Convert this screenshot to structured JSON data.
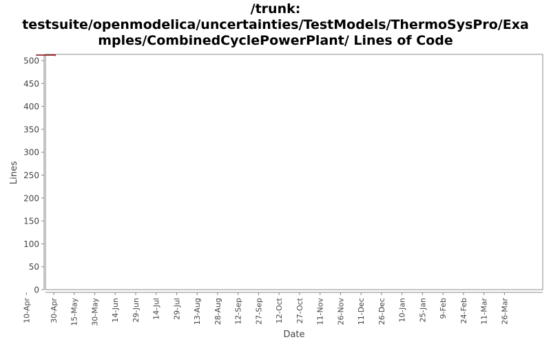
{
  "chart_data": {
    "type": "line",
    "title_lines": [
      "/trunk:",
      "testsuite/openmodelica/uncertainties/TestModels/ThermoSysPro/Exa",
      "mples/CombinedCyclePowerPlant/ Lines of Code"
    ],
    "xlabel": "Date",
    "ylabel": "Lines",
    "ylim": [
      0,
      515
    ],
    "yticks": [
      0,
      50,
      100,
      150,
      200,
      250,
      300,
      350,
      400,
      450,
      500
    ],
    "xticks": [
      "30-Apr",
      "15-May",
      "30-May",
      "14-Jun",
      "29-Jun",
      "14-Jul",
      "29-Jul",
      "13-Aug",
      "28-Aug",
      "12-Sep",
      "27-Sep",
      "12-Oct",
      "27-Oct",
      "11-Nov",
      "26-Nov",
      "11-Dec",
      "26-Dec",
      "10-Jan",
      "25-Jan",
      "9-Feb",
      "24-Feb",
      "11-Mar",
      "26-Mar",
      "10-Apr"
    ],
    "grid": false,
    "series": [
      {
        "x": [
          "1-May",
          "17-Apr"
        ],
        "values": [
          512,
          512
        ],
        "color": "#800000",
        "marker_color": "#ff0000"
      }
    ]
  }
}
